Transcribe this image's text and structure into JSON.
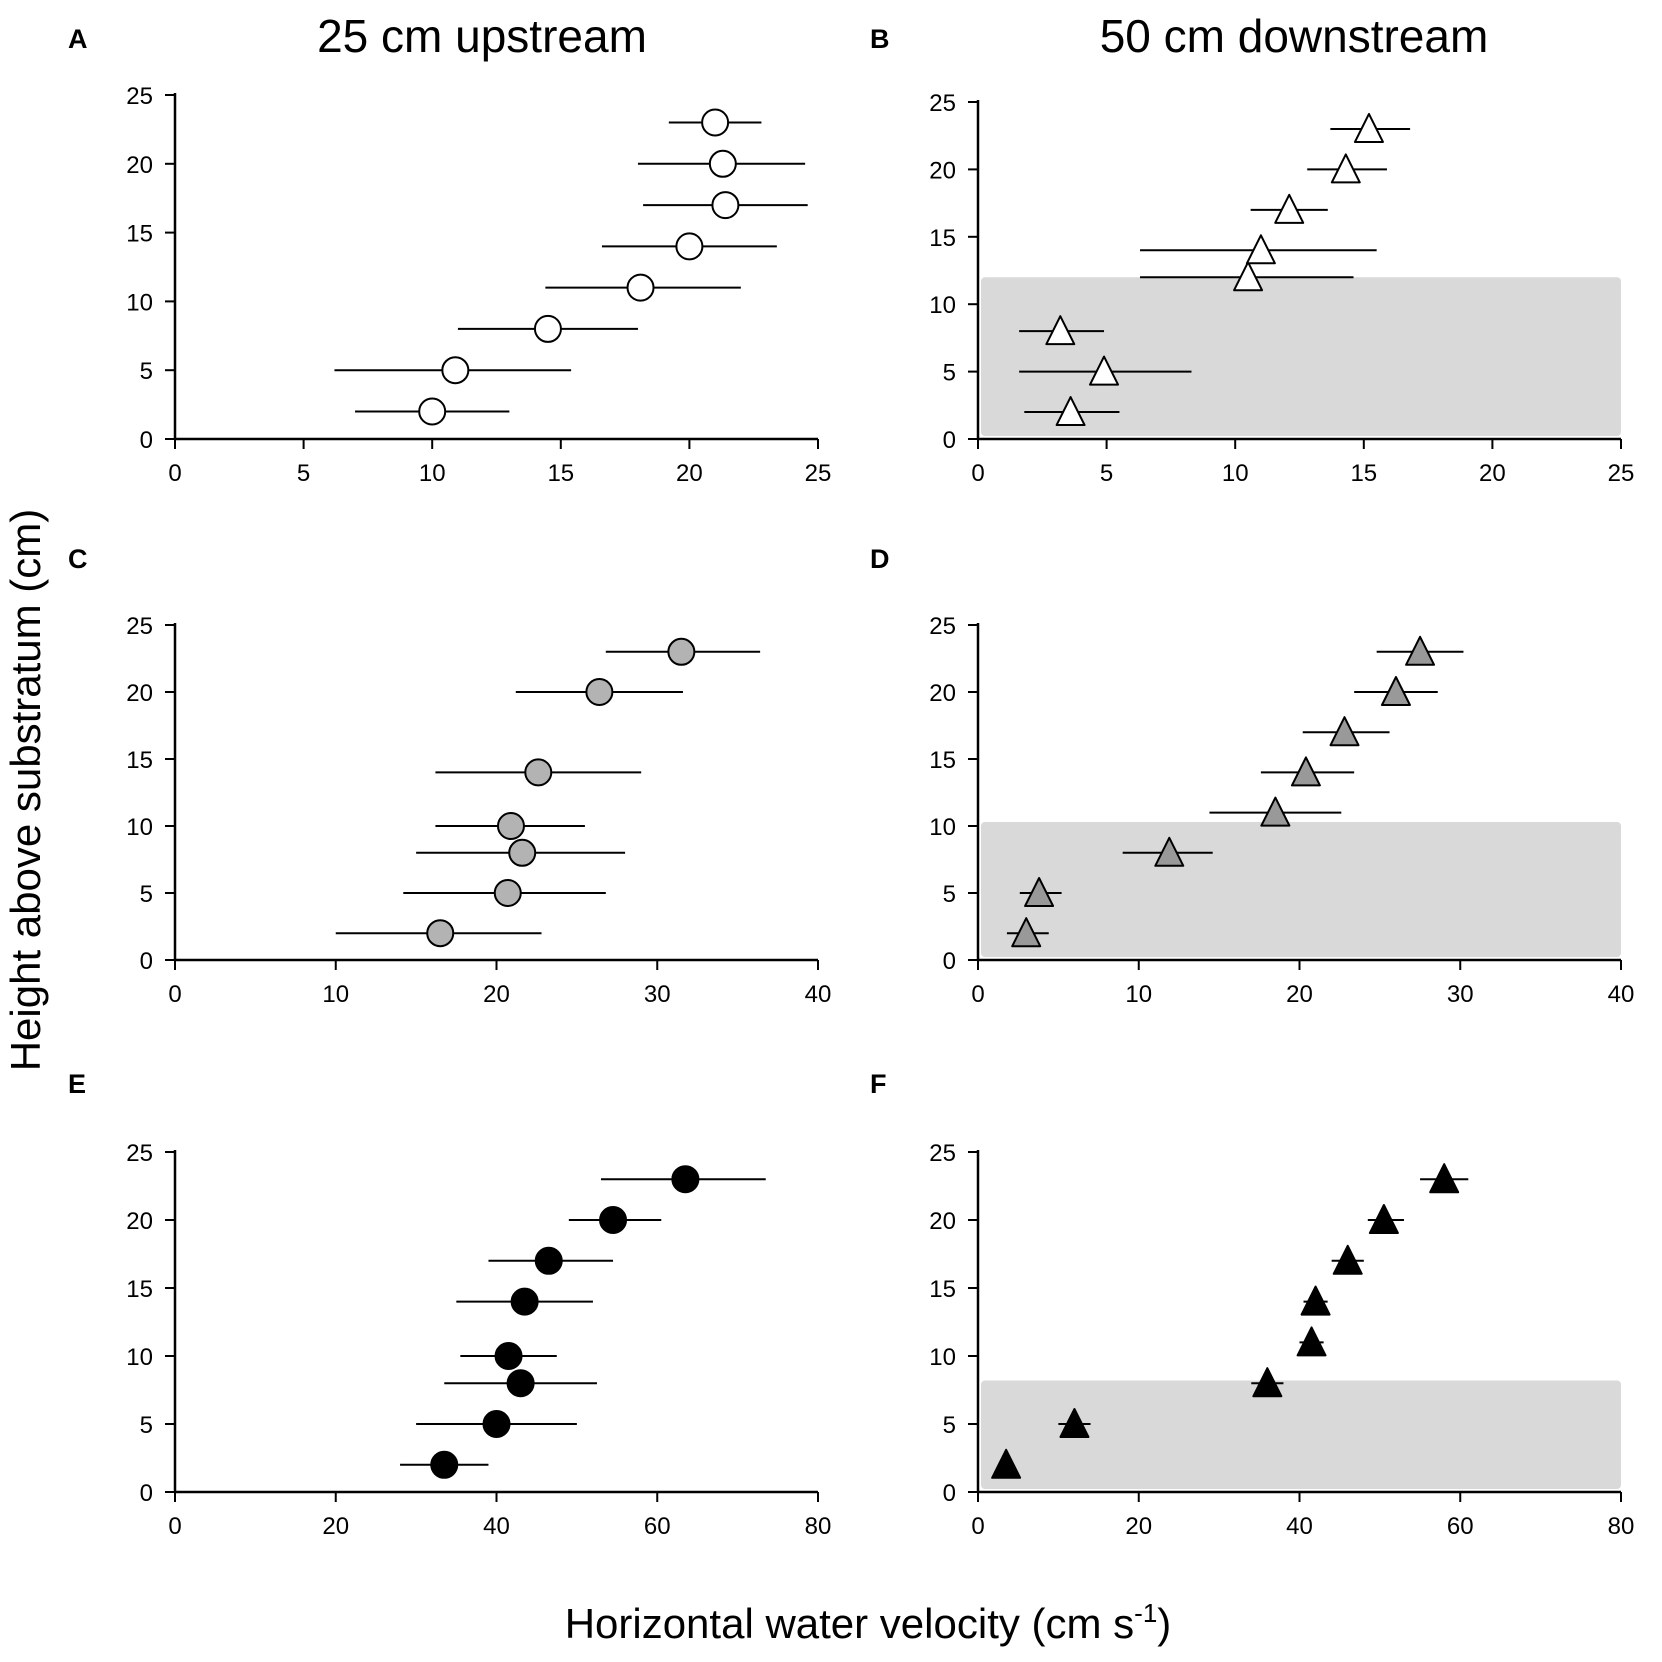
{
  "figure": {
    "column_titles": [
      "25 cm upstream",
      "50 cm downstream"
    ],
    "ylabel": "Height above substratum (cm)",
    "xlabel_main": "Horizontal water velocity (cm s",
    "xlabel_sup": "-1",
    "xlabel_end": ")"
  },
  "chart_data": [
    {
      "panel": "A",
      "type": "scatter",
      "marker": "circle",
      "fill": "#ffffff",
      "xlim": [
        0,
        25
      ],
      "xticks": [
        0,
        5,
        10,
        15,
        20,
        25
      ],
      "ylim": [
        0,
        25
      ],
      "yticks": [
        0,
        5,
        10,
        15,
        20,
        25
      ],
      "shaded_region": null,
      "points": [
        {
          "x": 10.0,
          "y": 2,
          "xerr_lo": 7.0,
          "xerr_hi": 13.0
        },
        {
          "x": 10.9,
          "y": 5,
          "xerr_lo": 6.2,
          "xerr_hi": 15.4
        },
        {
          "x": 14.5,
          "y": 8,
          "xerr_lo": 11.0,
          "xerr_hi": 18.0
        },
        {
          "x": 18.1,
          "y": 11,
          "xerr_lo": 14.4,
          "xerr_hi": 22.0
        },
        {
          "x": 20.0,
          "y": 14,
          "xerr_lo": 16.6,
          "xerr_hi": 23.4
        },
        {
          "x": 21.4,
          "y": 17,
          "xerr_lo": 18.2,
          "xerr_hi": 24.6
        },
        {
          "x": 21.3,
          "y": 20,
          "xerr_lo": 18.0,
          "xerr_hi": 24.5
        },
        {
          "x": 21.0,
          "y": 23,
          "xerr_lo": 19.2,
          "xerr_hi": 22.8
        }
      ]
    },
    {
      "panel": "B",
      "type": "scatter",
      "marker": "triangle",
      "fill": "#ffffff",
      "xlim": [
        0,
        25
      ],
      "xticks": [
        0,
        5,
        10,
        15,
        20,
        25
      ],
      "ylim": [
        0,
        25
      ],
      "yticks": [
        0,
        5,
        10,
        15,
        20,
        25
      ],
      "shaded_region": {
        "x0": 0,
        "x1": 25,
        "y0": 0,
        "y1": 12,
        "color": "#d9d9d9"
      },
      "points": [
        {
          "x": 3.6,
          "y": 2,
          "xerr_lo": 1.8,
          "xerr_hi": 5.5
        },
        {
          "x": 4.9,
          "y": 5,
          "xerr_lo": 1.6,
          "xerr_hi": 8.3
        },
        {
          "x": 3.2,
          "y": 8,
          "xerr_lo": 1.6,
          "xerr_hi": 4.9
        },
        {
          "x": 10.5,
          "y": 12,
          "xerr_lo": 6.3,
          "xerr_hi": 14.6
        },
        {
          "x": 11.0,
          "y": 14,
          "xerr_lo": 6.3,
          "xerr_hi": 15.5
        },
        {
          "x": 12.1,
          "y": 17,
          "xerr_lo": 10.6,
          "xerr_hi": 13.6
        },
        {
          "x": 14.3,
          "y": 20,
          "xerr_lo": 12.8,
          "xerr_hi": 15.9
        },
        {
          "x": 15.2,
          "y": 23,
          "xerr_lo": 13.7,
          "xerr_hi": 16.8
        }
      ]
    },
    {
      "panel": "C",
      "type": "scatter",
      "marker": "circle",
      "fill": "#b3b3b3",
      "xlim": [
        0,
        40
      ],
      "xticks": [
        0,
        10,
        20,
        30,
        40
      ],
      "ylim": [
        0,
        25
      ],
      "yticks": [
        0,
        5,
        10,
        15,
        20,
        25
      ],
      "shaded_region": null,
      "points": [
        {
          "x": 16.5,
          "y": 2,
          "xerr_lo": 10.0,
          "xerr_hi": 22.8
        },
        {
          "x": 20.7,
          "y": 5,
          "xerr_lo": 14.2,
          "xerr_hi": 26.8
        },
        {
          "x": 21.6,
          "y": 8,
          "xerr_lo": 15.0,
          "xerr_hi": 28.0
        },
        {
          "x": 20.9,
          "y": 10,
          "xerr_lo": 16.2,
          "xerr_hi": 25.5
        },
        {
          "x": 22.6,
          "y": 14,
          "xerr_lo": 16.2,
          "xerr_hi": 29.0
        },
        {
          "x": 26.4,
          "y": 20,
          "xerr_lo": 21.2,
          "xerr_hi": 31.6
        },
        {
          "x": 31.5,
          "y": 23,
          "xerr_lo": 26.8,
          "xerr_hi": 36.4
        }
      ]
    },
    {
      "panel": "D",
      "type": "scatter",
      "marker": "triangle",
      "fill": "#999999",
      "xlim": [
        0,
        40
      ],
      "xticks": [
        0,
        10,
        20,
        30,
        40
      ],
      "ylim": [
        0,
        25
      ],
      "yticks": [
        0,
        5,
        10,
        15,
        20,
        25
      ],
      "shaded_region": {
        "x0": 0,
        "x1": 40,
        "y0": 0,
        "y1": 10.3,
        "color": "#d9d9d9"
      },
      "points": [
        {
          "x": 3.0,
          "y": 2,
          "xerr_lo": 1.8,
          "xerr_hi": 4.4
        },
        {
          "x": 3.8,
          "y": 5,
          "xerr_lo": 2.6,
          "xerr_hi": 5.2
        },
        {
          "x": 11.9,
          "y": 8,
          "xerr_lo": 9.0,
          "xerr_hi": 14.6
        },
        {
          "x": 18.5,
          "y": 11,
          "xerr_lo": 14.4,
          "xerr_hi": 22.6
        },
        {
          "x": 20.4,
          "y": 14,
          "xerr_lo": 17.6,
          "xerr_hi": 23.4
        },
        {
          "x": 22.8,
          "y": 17,
          "xerr_lo": 20.2,
          "xerr_hi": 25.6
        },
        {
          "x": 26.0,
          "y": 20,
          "xerr_lo": 23.4,
          "xerr_hi": 28.6
        },
        {
          "x": 27.5,
          "y": 23,
          "xerr_lo": 24.8,
          "xerr_hi": 30.2
        }
      ]
    },
    {
      "panel": "E",
      "type": "scatter",
      "marker": "circle",
      "fill": "#000000",
      "xlim": [
        0,
        80
      ],
      "xticks": [
        0,
        20,
        40,
        60,
        80
      ],
      "ylim": [
        0,
        25
      ],
      "yticks": [
        0,
        5,
        10,
        15,
        20,
        25
      ],
      "shaded_region": null,
      "points": [
        {
          "x": 33.5,
          "y": 2,
          "xerr_lo": 28.0,
          "xerr_hi": 39.0
        },
        {
          "x": 40.0,
          "y": 5,
          "xerr_lo": 30.0,
          "xerr_hi": 50.0
        },
        {
          "x": 43.0,
          "y": 8,
          "xerr_lo": 33.5,
          "xerr_hi": 52.5
        },
        {
          "x": 41.5,
          "y": 10,
          "xerr_lo": 35.5,
          "xerr_hi": 47.5
        },
        {
          "x": 43.5,
          "y": 14,
          "xerr_lo": 35.0,
          "xerr_hi": 52.0
        },
        {
          "x": 46.5,
          "y": 17,
          "xerr_lo": 39.0,
          "xerr_hi": 54.5
        },
        {
          "x": 54.5,
          "y": 20,
          "xerr_lo": 49.0,
          "xerr_hi": 60.5
        },
        {
          "x": 63.5,
          "y": 23,
          "xerr_lo": 53.0,
          "xerr_hi": 73.5
        }
      ]
    },
    {
      "panel": "F",
      "type": "scatter",
      "marker": "triangle",
      "fill": "#000000",
      "xlim": [
        0,
        80
      ],
      "xticks": [
        0,
        20,
        40,
        60,
        80
      ],
      "ylim": [
        0,
        25
      ],
      "yticks": [
        0,
        5,
        10,
        15,
        20,
        25
      ],
      "shaded_region": {
        "x0": 0,
        "x1": 80,
        "y0": 0,
        "y1": 8.2,
        "color": "#d9d9d9"
      },
      "points": [
        {
          "x": 3.5,
          "y": 2,
          "xerr_lo": 3.0,
          "xerr_hi": 4.0
        },
        {
          "x": 12.0,
          "y": 5,
          "xerr_lo": 10.0,
          "xerr_hi": 14.0
        },
        {
          "x": 36.0,
          "y": 8,
          "xerr_lo": 34.0,
          "xerr_hi": 38.0
        },
        {
          "x": 41.5,
          "y": 11,
          "xerr_lo": 40.0,
          "xerr_hi": 43.0
        },
        {
          "x": 42.0,
          "y": 14,
          "xerr_lo": 40.5,
          "xerr_hi": 43.5
        },
        {
          "x": 46.0,
          "y": 17,
          "xerr_lo": 44.0,
          "xerr_hi": 48.0
        },
        {
          "x": 50.5,
          "y": 20,
          "xerr_lo": 48.5,
          "xerr_hi": 53.0
        },
        {
          "x": 58.0,
          "y": 23,
          "xerr_lo": 55.0,
          "xerr_hi": 61.0
        }
      ]
    }
  ]
}
